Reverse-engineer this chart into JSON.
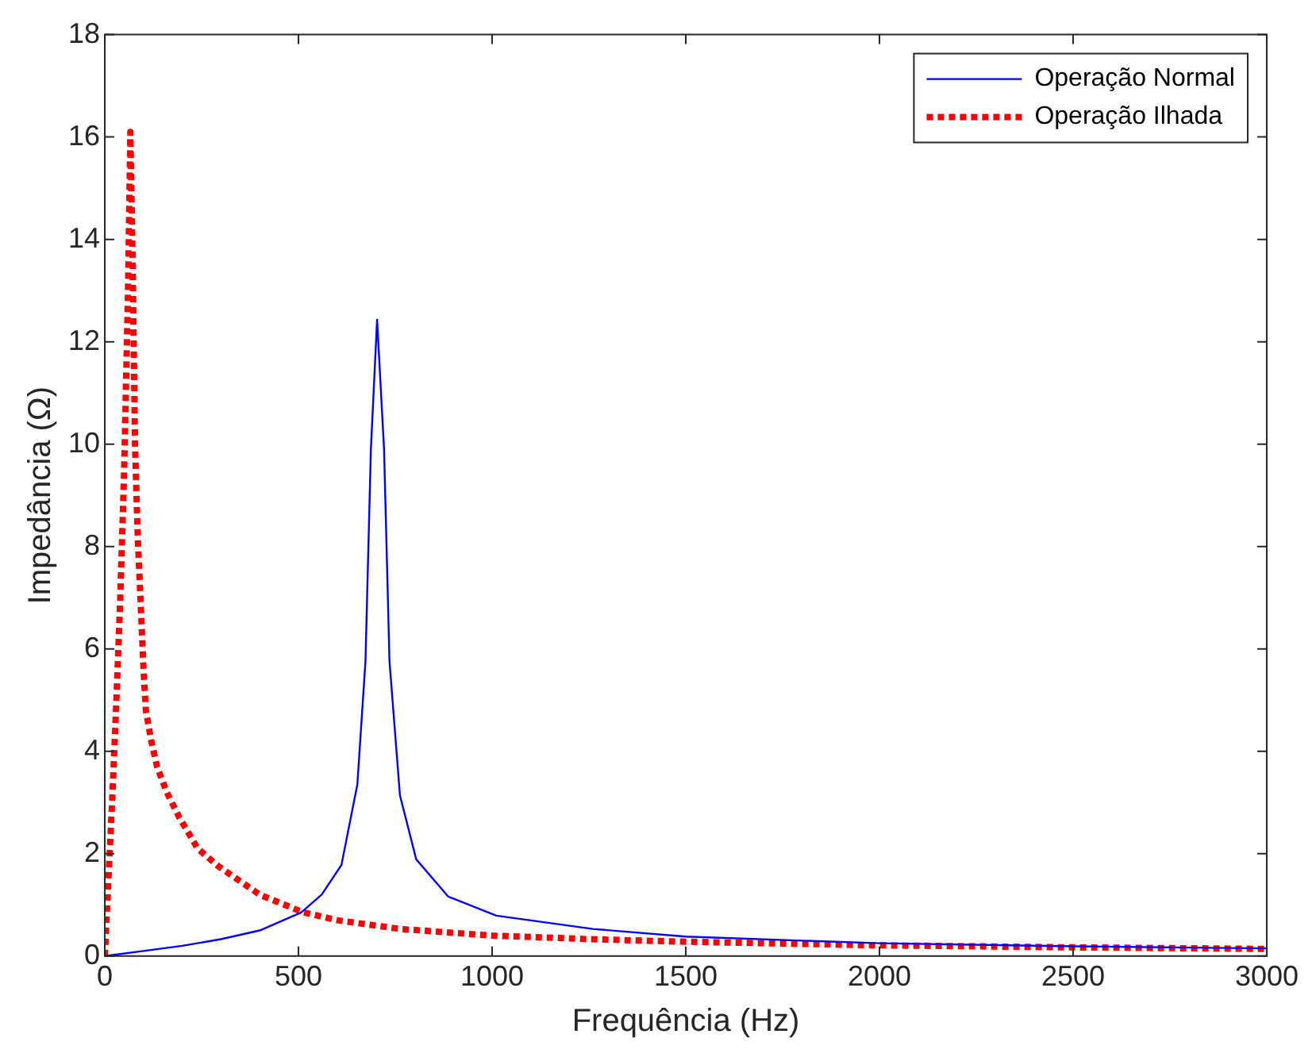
{
  "chart_data": {
    "type": "line",
    "xlabel": "Frequência (Hz)",
    "ylabel": "Impedância (Ω)",
    "xlim": [
      0,
      3000
    ],
    "xticks": [
      0,
      500,
      1000,
      1500,
      2000,
      2500,
      3000
    ],
    "ylim": [
      0,
      18
    ],
    "yticks": [
      0,
      2,
      4,
      6,
      8,
      10,
      12,
      14,
      16,
      18
    ],
    "legend": "top right",
    "marker": "none",
    "series": [
      {
        "name": "Operação Normal",
        "color": "#0000ff",
        "line_style": "solid",
        "x": [
          0,
          100,
          200,
          300,
          400,
          507,
          560,
          611,
          652,
          673,
          687,
          703,
          721,
          735,
          762,
          804,
          887,
          1011,
          1260,
          1500,
          2000,
          2500,
          3000
        ],
        "values": [
          0,
          0.1,
          0.2,
          0.33,
          0.5,
          0.85,
          1.2,
          1.78,
          3.35,
          5.76,
          9.9,
          12.43,
          9.9,
          5.76,
          3.14,
          1.89,
          1.16,
          0.79,
          0.53,
          0.38,
          0.25,
          0.19,
          0.15
        ]
      },
      {
        "name": "Operação Ilhada",
        "color": "#ff0000",
        "line_style": "dotted",
        "x": [
          0,
          10,
          20,
          30,
          40,
          50,
          60,
          66,
          72,
          78,
          85,
          92,
          100,
          106,
          120,
          135,
          160,
          193,
          240,
          294,
          400,
          510,
          600,
          762,
          1000,
          1250,
          1500,
          2000,
          2500,
          3000
        ],
        "values": [
          0,
          1.6,
          3.2,
          5,
          7,
          9.5,
          13,
          16.1,
          13.5,
          10,
          8.2,
          7,
          5.6,
          4.8,
          4.2,
          3.7,
          3.2,
          2.7,
          2.1,
          1.75,
          1.2,
          0.86,
          0.7,
          0.53,
          0.4,
          0.33,
          0.28,
          0.21,
          0.17,
          0.14
        ]
      }
    ]
  }
}
